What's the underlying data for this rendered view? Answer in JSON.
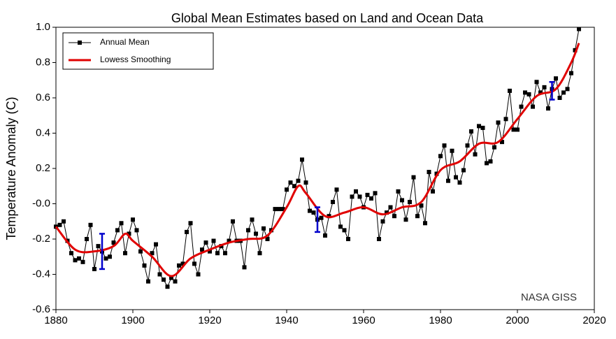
{
  "chart_data": {
    "type": "line",
    "title": "Global Mean Estimates based on Land and Ocean Data",
    "y_label": "Temperature Anomaly (C)",
    "annotation": "NASA GISS",
    "legend_position": "upper left",
    "xlim": [
      1880,
      2020
    ],
    "xticks": [
      1880,
      1900,
      1920,
      1940,
      1960,
      1980,
      2000,
      2020
    ],
    "ylim": [
      -0.6,
      1.0
    ],
    "yticks": [
      {
        "value": 1.0,
        "label": "1.0"
      },
      0.8,
      0.6,
      0.4,
      0.2,
      {
        "value": 0,
        "label": "-0.0"
      },
      -0.2,
      -0.4,
      -0.6
    ],
    "series": [
      {
        "name": "Annual Mean",
        "color": "#000000",
        "marker": "square",
        "x": [
          1880,
          1881,
          1882,
          1883,
          1884,
          1885,
          1886,
          1887,
          1888,
          1889,
          1890,
          1891,
          1892,
          1893,
          1894,
          1895,
          1896,
          1897,
          1898,
          1899,
          1900,
          1901,
          1902,
          1903,
          1904,
          1905,
          1906,
          1907,
          1908,
          1909,
          1910,
          1911,
          1912,
          1913,
          1914,
          1915,
          1916,
          1917,
          1918,
          1919,
          1920,
          1921,
          1922,
          1923,
          1924,
          1925,
          1926,
          1927,
          1928,
          1929,
          1930,
          1931,
          1932,
          1933,
          1934,
          1935,
          1936,
          1937,
          1938,
          1939,
          1940,
          1941,
          1942,
          1943,
          1944,
          1945,
          1946,
          1947,
          1948,
          1949,
          1950,
          1951,
          1952,
          1953,
          1954,
          1955,
          1956,
          1957,
          1958,
          1959,
          1960,
          1961,
          1962,
          1963,
          1964,
          1965,
          1966,
          1967,
          1968,
          1969,
          1970,
          1971,
          1972,
          1973,
          1974,
          1975,
          1976,
          1977,
          1978,
          1979,
          1980,
          1981,
          1982,
          1983,
          1984,
          1985,
          1986,
          1987,
          1988,
          1989,
          1990,
          1991,
          1992,
          1993,
          1994,
          1995,
          1996,
          1997,
          1998,
          1999,
          2000,
          2001,
          2002,
          2003,
          2004,
          2005,
          2006,
          2007,
          2008,
          2009,
          2010,
          2011,
          2012,
          2013,
          2014,
          2015,
          2016
        ],
        "values": [
          -0.13,
          -0.12,
          -0.1,
          -0.21,
          -0.28,
          -0.32,
          -0.31,
          -0.33,
          -0.2,
          -0.12,
          -0.37,
          -0.24,
          -0.27,
          -0.31,
          -0.3,
          -0.22,
          -0.15,
          -0.11,
          -0.28,
          -0.17,
          -0.09,
          -0.15,
          -0.27,
          -0.35,
          -0.44,
          -0.28,
          -0.23,
          -0.4,
          -0.43,
          -0.47,
          -0.42,
          -0.44,
          -0.35,
          -0.34,
          -0.16,
          -0.11,
          -0.34,
          -0.4,
          -0.26,
          -0.22,
          -0.27,
          -0.21,
          -0.28,
          -0.24,
          -0.28,
          -0.21,
          -0.1,
          -0.21,
          -0.21,
          -0.36,
          -0.15,
          -0.09,
          -0.17,
          -0.28,
          -0.14,
          -0.2,
          -0.15,
          -0.03,
          -0.03,
          -0.03,
          0.08,
          0.12,
          0.1,
          0.13,
          0.25,
          0.12,
          -0.04,
          -0.05,
          -0.09,
          -0.08,
          -0.18,
          -0.07,
          0.01,
          0.08,
          -0.13,
          -0.15,
          -0.2,
          0.04,
          0.07,
          0.04,
          -0.02,
          0.05,
          0.03,
          0.06,
          -0.2,
          -0.1,
          -0.05,
          -0.02,
          -0.07,
          0.07,
          0.02,
          -0.09,
          0.01,
          0.15,
          -0.07,
          -0.01,
          -0.11,
          0.18,
          0.07,
          0.17,
          0.27,
          0.33,
          0.13,
          0.3,
          0.15,
          0.12,
          0.19,
          0.33,
          0.41,
          0.28,
          0.44,
          0.43,
          0.23,
          0.24,
          0.32,
          0.46,
          0.35,
          0.48,
          0.64,
          0.42,
          0.42,
          0.55,
          0.63,
          0.62,
          0.55,
          0.69,
          0.63,
          0.66,
          0.54,
          0.65,
          0.71,
          0.6,
          0.63,
          0.65,
          0.74,
          0.87,
          0.99
        ]
      },
      {
        "name": "Lowess Smoothing",
        "color": "#e00000",
        "x": [
          1880,
          1885,
          1890,
          1895,
          1898,
          1900,
          1905,
          1910,
          1915,
          1920,
          1925,
          1930,
          1935,
          1940,
          1943,
          1945,
          1950,
          1955,
          1960,
          1965,
          1970,
          1975,
          1980,
          1985,
          1990,
          1995,
          2000,
          2005,
          2010,
          2014,
          2016
        ],
        "values": [
          -0.13,
          -0.26,
          -0.27,
          -0.24,
          -0.17,
          -0.21,
          -0.3,
          -0.41,
          -0.31,
          -0.26,
          -0.22,
          -0.2,
          -0.18,
          -0.02,
          0.1,
          0.06,
          -0.07,
          -0.05,
          -0.02,
          -0.06,
          -0.02,
          0.01,
          0.19,
          0.24,
          0.34,
          0.35,
          0.48,
          0.61,
          0.65,
          0.8,
          0.91
        ]
      }
    ],
    "error_bars": {
      "color": "#0000cc",
      "x": [
        1892,
        1948,
        2009
      ],
      "values": [
        -0.27,
        -0.09,
        0.64
      ],
      "errors": [
        0.1,
        0.07,
        0.05
      ]
    }
  }
}
